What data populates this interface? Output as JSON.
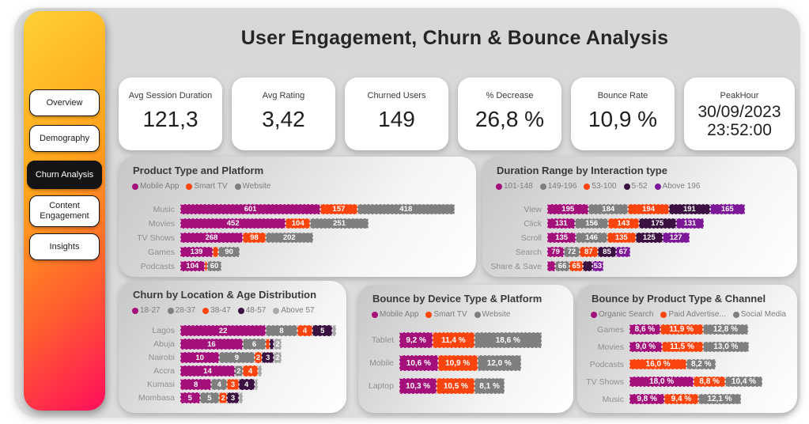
{
  "page_title": "User Engagement, Churn & Bounce Analysis",
  "colors": {
    "magenta": "#A3107A",
    "orange": "#FB440E",
    "gray": "#7F7F7F",
    "lightgray": "#A9A9A9",
    "darkpurple": "#3A1140",
    "purple": "#7D1999",
    "sidebar_gradient_top": "#FFD035",
    "sidebar_gradient_bottom": "#FF0D5C",
    "active_tab_bg": "#141414"
  },
  "sidebar": {
    "items": [
      {
        "label": "Overview",
        "active": false
      },
      {
        "label": "Demography",
        "active": false
      },
      {
        "label": "Churn Analysis",
        "active": true
      },
      {
        "label": "Content Engagement",
        "active": false
      },
      {
        "label": "Insights",
        "active": false
      }
    ]
  },
  "kpis": [
    {
      "label": "Avg Session Duration",
      "value": "121,3"
    },
    {
      "label": "Avg Rating",
      "value": "3,42"
    },
    {
      "label": "Churned Users",
      "value": "149"
    },
    {
      "label": "% Decrease",
      "value": "26,8 %"
    },
    {
      "label": "Bounce Rate",
      "value": "10,9 %"
    },
    {
      "label": "PeakHour",
      "value": "30/09/2023 23:52:00"
    }
  ],
  "chart_data": [
    {
      "type": "bar",
      "orientation": "horizontal-stacked",
      "title": "Product Type and Platform",
      "legend_position": "top",
      "categories": [
        "Music",
        "Movies",
        "TV Shows",
        "Games",
        "Podcasts"
      ],
      "series": [
        {
          "name": "Mobile App",
          "color": "magenta",
          "values": [
            601,
            452,
            268,
            139,
            104
          ],
          "labels": [
            "601",
            "452",
            "268",
            "139",
            "104"
          ]
        },
        {
          "name": "Smart TV",
          "color": "orange",
          "values": [
            157,
            104,
            98,
            25,
            12
          ],
          "labels": [
            "157",
            "104",
            "98",
            "",
            ""
          ]
        },
        {
          "name": "Website",
          "color": "gray",
          "values": [
            418,
            251,
            202,
            90,
            60
          ],
          "labels": [
            "418",
            "251",
            "202",
            "90",
            "60"
          ]
        }
      ]
    },
    {
      "type": "bar",
      "orientation": "horizontal-stacked",
      "title": "Duration Range by Interaction type",
      "legend_position": "top",
      "categories": [
        "View",
        "Click",
        "Scroll",
        "Search",
        "Share & Save"
      ],
      "series": [
        {
          "name": "101-148",
          "color": "magenta",
          "values": [
            195,
            131,
            135,
            79,
            38
          ],
          "labels": [
            "195",
            "131",
            "135",
            "79",
            ""
          ]
        },
        {
          "name": "149-196",
          "color": "gray",
          "values": [
            184,
            156,
            146,
            72,
            66
          ],
          "labels": [
            "184",
            "156",
            "146",
            "72",
            "66"
          ]
        },
        {
          "name": "53-100",
          "color": "orange",
          "values": [
            194,
            143,
            135,
            87,
            65
          ],
          "labels": [
            "194",
            "143",
            "135",
            "87",
            "65"
          ]
        },
        {
          "name": "5-52",
          "color": "darkpurple",
          "values": [
            191,
            175,
            125,
            85,
            42
          ],
          "labels": [
            "191",
            "175",
            "125",
            "85",
            ""
          ]
        },
        {
          "name": "Above 196",
          "color": "purple",
          "values": [
            165,
            131,
            127,
            67,
            53
          ],
          "labels": [
            "165",
            "131",
            "127",
            "67",
            "53"
          ]
        }
      ]
    },
    {
      "type": "bar",
      "orientation": "horizontal-stacked",
      "title": "Churn by Location & Age Distribution",
      "legend_position": "top",
      "categories": [
        "Lagos",
        "Abuja",
        "Nairobi",
        "Accra",
        "Kumasi",
        "Mombasa"
      ],
      "series": [
        {
          "name": "18-27",
          "color": "magenta",
          "values": [
            22,
            16,
            10,
            14,
            8,
            5
          ],
          "labels": [
            "22",
            "16",
            "10",
            "14",
            "8",
            "5"
          ]
        },
        {
          "name": "28-37",
          "color": "gray",
          "values": [
            8,
            6,
            9,
            2,
            4,
            5
          ],
          "labels": [
            "8",
            "6",
            "9",
            "2",
            "4",
            "5"
          ]
        },
        {
          "name": "38-47",
          "color": "orange",
          "values": [
            4,
            1,
            2,
            4,
            3,
            2
          ],
          "labels": [
            "4",
            "",
            "2",
            "4",
            "3",
            "2"
          ]
        },
        {
          "name": "48-57",
          "color": "darkpurple",
          "values": [
            5,
            1,
            3,
            0,
            4,
            3
          ],
          "labels": [
            "5",
            "",
            "3",
            "",
            "4",
            "3"
          ]
        },
        {
          "name": "Above 57",
          "color": "lightgray",
          "values": [
            1,
            2,
            2,
            1,
            1,
            1
          ],
          "labels": [
            "",
            "2",
            "2",
            "",
            "",
            ""
          ]
        }
      ]
    },
    {
      "type": "bar",
      "orientation": "horizontal-stacked",
      "title": "Bounce by Device Type & Platform",
      "legend_position": "top",
      "categories": [
        "Tablet",
        "Mobile",
        "Laptop"
      ],
      "series": [
        {
          "name": "Mobile App",
          "color": "magenta",
          "values": [
            9.2,
            10.6,
            10.3
          ],
          "labels": [
            "9,2 %",
            "10,6 %",
            "10,3 %"
          ]
        },
        {
          "name": "Smart TV",
          "color": "orange",
          "values": [
            11.4,
            10.9,
            10.5
          ],
          "labels": [
            "11,4 %",
            "10,9 %",
            "10,5 %"
          ]
        },
        {
          "name": "Website",
          "color": "gray",
          "values": [
            18.6,
            12.0,
            8.1
          ],
          "labels": [
            "18,6 %",
            "12,0 %",
            "8,1 %"
          ]
        }
      ]
    },
    {
      "type": "bar",
      "orientation": "horizontal-stacked",
      "title": "Bounce by Product Type & Channel",
      "legend_position": "top",
      "categories": [
        "Games",
        "Movies",
        "Podcasts",
        "TV Shows",
        "Music"
      ],
      "series": [
        {
          "name": "Organic Search",
          "color": "magenta",
          "values": [
            8.6,
            9.0,
            0,
            18.0,
            9.8
          ],
          "labels": [
            "8,6 %",
            "9,0 %",
            "",
            "18,0 %",
            "9,8 %"
          ]
        },
        {
          "name": "Paid Advertise...",
          "color": "orange",
          "values": [
            11.9,
            11.5,
            16.0,
            8.8,
            9.4
          ],
          "labels": [
            "11,9 %",
            "11,5 %",
            "16,0 %",
            "8,8 %",
            "9,4 %"
          ]
        },
        {
          "name": "Social Media",
          "color": "gray",
          "values": [
            12.8,
            13.0,
            8.2,
            10.4,
            12.1
          ],
          "labels": [
            "12,8 %",
            "13,0 %",
            "8,2 %",
            "10,4 %",
            "12,1 %"
          ]
        }
      ]
    }
  ]
}
